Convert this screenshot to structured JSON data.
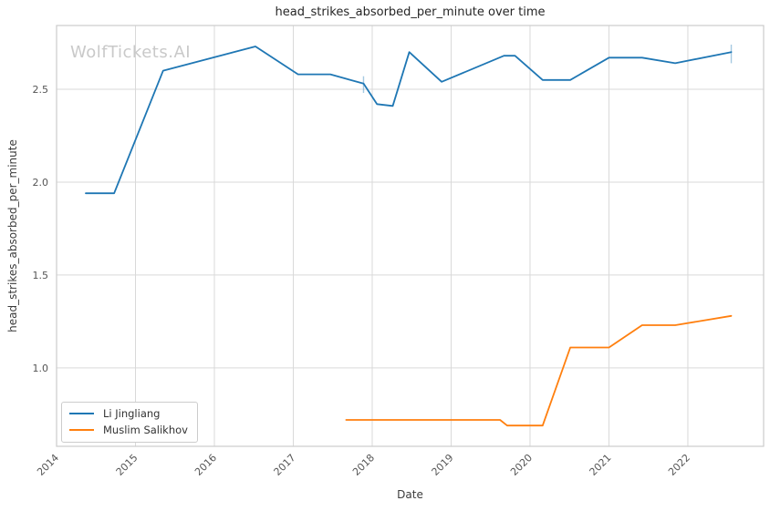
{
  "watermark": "WolfTickets.AI",
  "chart_data": {
    "type": "line",
    "title": "head_strikes_absorbed_per_minute over time",
    "xlabel": "Date",
    "ylabel": "head_strikes_absorbed_per_minute",
    "xlim": [
      2014,
      2022.96
    ],
    "ylim": [
      0.578,
      2.843
    ],
    "grid": true,
    "legend_position": "lower left",
    "x_tick_values": [
      2014,
      2015,
      2016,
      2017,
      2018,
      2019,
      2020,
      2021,
      2022
    ],
    "x_tick_labels": [
      "2014",
      "2015",
      "2016",
      "2017",
      "2018",
      "2019",
      "2020",
      "2021",
      "2022"
    ],
    "y_tick_values": [
      1.0,
      1.5,
      2.0,
      2.5
    ],
    "y_tick_labels": [
      "1.0",
      "1.5",
      "2.0",
      "2.5"
    ],
    "colors": {
      "spine": "#cccccc",
      "grid": "#d9d9d9",
      "tick_label": "#555555",
      "title": "#262626",
      "watermark": "#c9c9c9"
    },
    "series": [
      {
        "name": "Li Jingliang",
        "color": "#1f77b4",
        "points": [
          [
            2014.37,
            1.94
          ],
          [
            2014.73,
            1.94
          ],
          [
            2015.35,
            2.6
          ],
          [
            2016.52,
            2.73
          ],
          [
            2017.06,
            2.58
          ],
          [
            2017.47,
            2.58
          ],
          [
            2017.89,
            2.53
          ],
          [
            2018.06,
            2.42
          ],
          [
            2018.26,
            2.41
          ],
          [
            2018.47,
            2.7
          ],
          [
            2018.88,
            2.54
          ],
          [
            2019.67,
            2.68
          ],
          [
            2019.81,
            2.68
          ],
          [
            2020.16,
            2.55
          ],
          [
            2020.51,
            2.55
          ],
          [
            2021.0,
            2.67
          ],
          [
            2021.42,
            2.67
          ],
          [
            2021.84,
            2.64
          ],
          [
            2022.55,
            2.7
          ]
        ],
        "error_bars": [
          {
            "x": 2017.89,
            "low": 2.48,
            "high": 2.57
          },
          {
            "x": 2022.55,
            "low": 2.64,
            "high": 2.74
          }
        ]
      },
      {
        "name": "Muslim Salikhov",
        "color": "#ff7f0e",
        "points": [
          [
            2017.67,
            0.72
          ],
          [
            2019.62,
            0.72
          ],
          [
            2019.71,
            0.69
          ],
          [
            2020.16,
            0.69
          ],
          [
            2020.51,
            1.11
          ],
          [
            2021.0,
            1.11
          ],
          [
            2021.42,
            1.23
          ],
          [
            2021.84,
            1.23
          ],
          [
            2022.55,
            1.28
          ]
        ],
        "error_bars": []
      }
    ]
  }
}
